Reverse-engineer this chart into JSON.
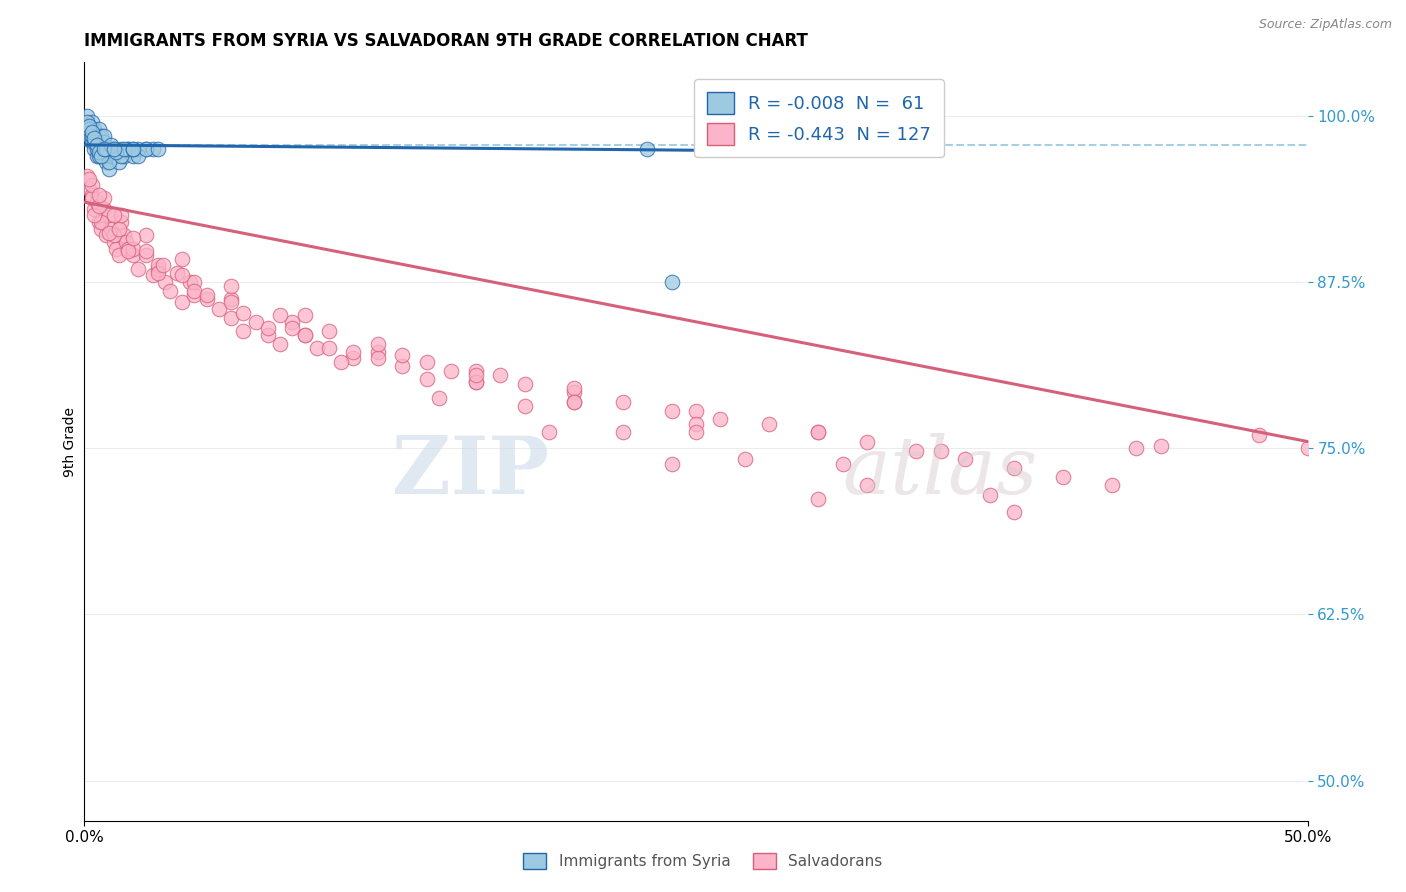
{
  "title": "IMMIGRANTS FROM SYRIA VS SALVADORAN 9TH GRADE CORRELATION CHART",
  "source_text": "Source: ZipAtlas.com",
  "ylabel": "9th Grade",
  "ytick_values": [
    1.0,
    0.875,
    0.75,
    0.625,
    0.5
  ],
  "xmin": 0.0,
  "xmax": 0.5,
  "ymin": 0.47,
  "ymax": 1.04,
  "legend_blue_label": "R = -0.008  N =  61",
  "legend_pink_label": "R = -0.443  N = 127",
  "blue_color": "#9ecae1",
  "pink_color": "#fbb4c9",
  "blue_line_color": "#2166ac",
  "pink_line_color": "#d6607a",
  "dashed_line_color": "#9ecae1",
  "dashed_line_y": 0.978,
  "watermark_zip": "ZIP",
  "watermark_atlas": "atlas",
  "blue_scatter_x": [
    0.001,
    0.002,
    0.002,
    0.003,
    0.003,
    0.004,
    0.004,
    0.005,
    0.005,
    0.006,
    0.006,
    0.007,
    0.007,
    0.008,
    0.008,
    0.009,
    0.009,
    0.01,
    0.01,
    0.011,
    0.012,
    0.013,
    0.014,
    0.015,
    0.016,
    0.018,
    0.02,
    0.022,
    0.025,
    0.028,
    0.001,
    0.002,
    0.003,
    0.004,
    0.005,
    0.006,
    0.007,
    0.008,
    0.01,
    0.012,
    0.015,
    0.018,
    0.022,
    0.002,
    0.003,
    0.004,
    0.005,
    0.006,
    0.007,
    0.009,
    0.011,
    0.013,
    0.016,
    0.02,
    0.025,
    0.03,
    0.008,
    0.012,
    0.02,
    0.24,
    0.23
  ],
  "blue_scatter_y": [
    1.0,
    0.99,
    0.985,
    0.995,
    0.98,
    0.99,
    0.975,
    0.985,
    0.97,
    0.98,
    0.99,
    0.975,
    0.985,
    0.97,
    0.98,
    0.975,
    0.965,
    0.975,
    0.96,
    0.97,
    0.975,
    0.97,
    0.965,
    0.975,
    0.97,
    0.975,
    0.97,
    0.975,
    0.975,
    0.975,
    0.995,
    0.99,
    0.985,
    0.98,
    0.975,
    0.97,
    0.975,
    0.985,
    0.965,
    0.975,
    0.97,
    0.975,
    0.97,
    0.992,
    0.988,
    0.983,
    0.978,
    0.973,
    0.97,
    0.975,
    0.978,
    0.973,
    0.975,
    0.975,
    0.975,
    0.975,
    0.975,
    0.975,
    0.975,
    0.875,
    0.975
  ],
  "pink_scatter_x": [
    0.001,
    0.002,
    0.003,
    0.004,
    0.005,
    0.006,
    0.007,
    0.008,
    0.009,
    0.01,
    0.011,
    0.012,
    0.013,
    0.014,
    0.015,
    0.016,
    0.017,
    0.018,
    0.02,
    0.022,
    0.025,
    0.028,
    0.03,
    0.033,
    0.035,
    0.038,
    0.04,
    0.043,
    0.045,
    0.05,
    0.055,
    0.06,
    0.065,
    0.07,
    0.075,
    0.08,
    0.085,
    0.09,
    0.095,
    0.1,
    0.11,
    0.12,
    0.13,
    0.14,
    0.15,
    0.16,
    0.17,
    0.18,
    0.2,
    0.22,
    0.24,
    0.26,
    0.28,
    0.3,
    0.32,
    0.34,
    0.36,
    0.38,
    0.4,
    0.42,
    0.003,
    0.007,
    0.012,
    0.02,
    0.03,
    0.045,
    0.06,
    0.08,
    0.1,
    0.13,
    0.16,
    0.2,
    0.25,
    0.3,
    0.35,
    0.004,
    0.01,
    0.018,
    0.03,
    0.045,
    0.065,
    0.09,
    0.12,
    0.16,
    0.2,
    0.25,
    0.006,
    0.014,
    0.025,
    0.04,
    0.06,
    0.085,
    0.11,
    0.14,
    0.18,
    0.22,
    0.27,
    0.32,
    0.38,
    0.44,
    0.003,
    0.008,
    0.015,
    0.025,
    0.04,
    0.06,
    0.09,
    0.12,
    0.16,
    0.2,
    0.25,
    0.31,
    0.37,
    0.43,
    0.002,
    0.006,
    0.012,
    0.02,
    0.032,
    0.05,
    0.075,
    0.105,
    0.145,
    0.19,
    0.24,
    0.3,
    0.5,
    0.48
  ],
  "pink_scatter_y": [
    0.955,
    0.945,
    0.94,
    0.93,
    0.935,
    0.92,
    0.915,
    0.93,
    0.91,
    0.925,
    0.915,
    0.905,
    0.9,
    0.895,
    0.92,
    0.91,
    0.905,
    0.9,
    0.895,
    0.885,
    0.895,
    0.88,
    0.885,
    0.875,
    0.868,
    0.882,
    0.86,
    0.875,
    0.865,
    0.862,
    0.855,
    0.848,
    0.838,
    0.845,
    0.835,
    0.828,
    0.845,
    0.835,
    0.825,
    0.825,
    0.818,
    0.822,
    0.812,
    0.815,
    0.808,
    0.8,
    0.805,
    0.798,
    0.792,
    0.785,
    0.778,
    0.772,
    0.768,
    0.762,
    0.755,
    0.748,
    0.742,
    0.735,
    0.728,
    0.722,
    0.938,
    0.92,
    0.91,
    0.9,
    0.888,
    0.875,
    0.862,
    0.85,
    0.838,
    0.82,
    0.808,
    0.795,
    0.778,
    0.762,
    0.748,
    0.925,
    0.912,
    0.898,
    0.882,
    0.868,
    0.852,
    0.835,
    0.818,
    0.8,
    0.785,
    0.768,
    0.932,
    0.915,
    0.898,
    0.88,
    0.86,
    0.84,
    0.822,
    0.802,
    0.782,
    0.762,
    0.742,
    0.722,
    0.702,
    0.752,
    0.948,
    0.938,
    0.925,
    0.91,
    0.892,
    0.872,
    0.85,
    0.828,
    0.805,
    0.785,
    0.762,
    0.738,
    0.715,
    0.75,
    0.952,
    0.94,
    0.925,
    0.908,
    0.888,
    0.865,
    0.84,
    0.815,
    0.788,
    0.762,
    0.738,
    0.712,
    0.75,
    0.76
  ],
  "blue_line_x0": 0.0,
  "blue_line_x1": 0.25,
  "blue_line_y0": 0.978,
  "blue_line_y1": 0.974,
  "pink_line_x0": 0.0,
  "pink_line_x1": 0.5,
  "pink_line_y0": 0.935,
  "pink_line_y1": 0.755
}
